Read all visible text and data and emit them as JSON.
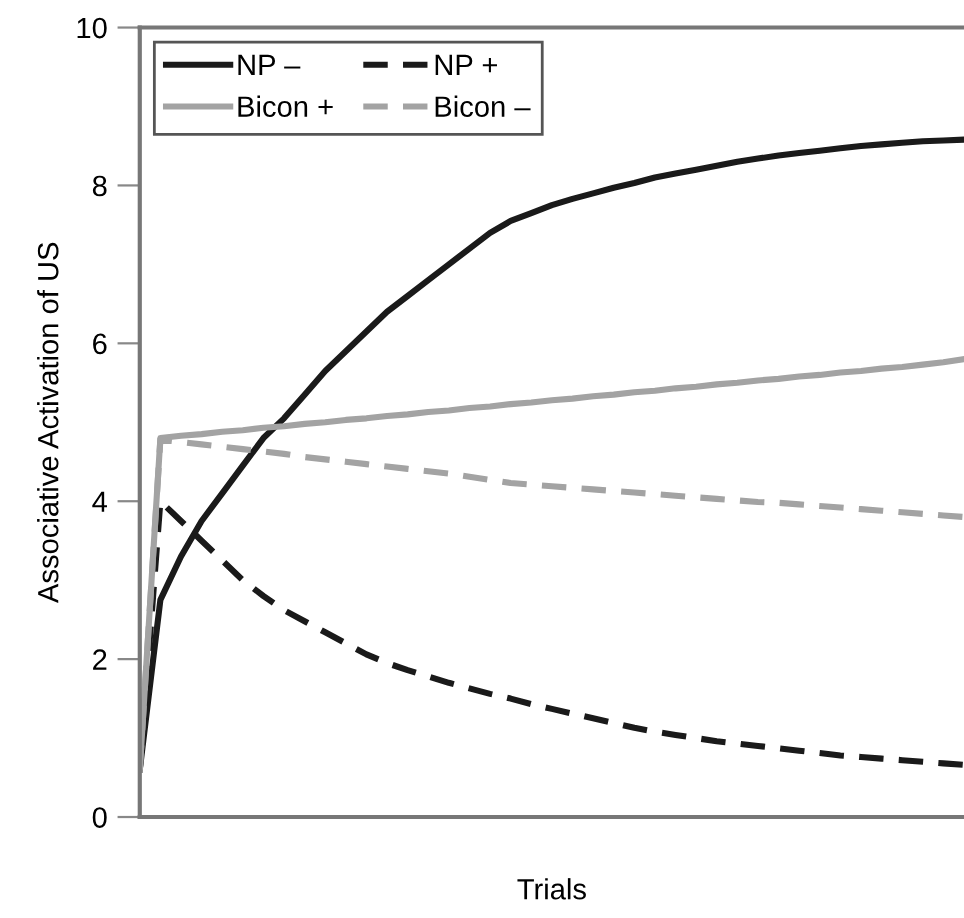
{
  "chart_data": {
    "type": "line",
    "xlabel": "Trials",
    "ylabel": "Associative Activation of US",
    "categories": [
      null,
      null,
      null,
      null,
      null,
      null,
      null,
      null,
      null,
      null,
      null,
      null,
      null,
      null,
      null,
      null,
      null,
      null,
      null,
      null,
      null,
      null,
      null,
      null,
      null,
      null,
      null,
      null,
      null,
      null,
      null,
      null,
      null,
      null,
      null,
      null,
      null,
      null,
      null,
      null,
      null
    ],
    "series": [
      {
        "name": "NP –",
        "color": "#1a1a1a",
        "line_style": "solid",
        "values": [
          0.6,
          2.75,
          3.3,
          3.75,
          4.1,
          4.45,
          4.8,
          5.05,
          5.35,
          5.65,
          5.9,
          6.15,
          6.4,
          6.6,
          6.8,
          7.0,
          7.2,
          7.4,
          7.55,
          7.65,
          7.75,
          7.83,
          7.9,
          7.97,
          8.03,
          8.1,
          8.15,
          8.2,
          8.25,
          8.3,
          8.34,
          8.38,
          8.41,
          8.44,
          8.47,
          8.5,
          8.52,
          8.54,
          8.56,
          8.57,
          8.58
        ]
      },
      {
        "name": "NP +",
        "color": "#1a1a1a",
        "line_style": "dashed",
        "values": [
          0.6,
          4.0,
          3.75,
          3.5,
          3.25,
          3.0,
          2.8,
          2.62,
          2.48,
          2.34,
          2.2,
          2.06,
          1.95,
          1.86,
          1.78,
          1.7,
          1.63,
          1.56,
          1.5,
          1.43,
          1.37,
          1.31,
          1.25,
          1.19,
          1.13,
          1.08,
          1.04,
          1.0,
          0.96,
          0.93,
          0.9,
          0.87,
          0.84,
          0.81,
          0.78,
          0.76,
          0.74,
          0.72,
          0.7,
          0.68,
          0.66
        ]
      },
      {
        "name": "Bicon +",
        "color": "#a3a3a3",
        "line_style": "solid",
        "values": [
          0.6,
          4.8,
          4.83,
          4.85,
          4.88,
          4.9,
          4.93,
          4.95,
          4.98,
          5.0,
          5.03,
          5.05,
          5.08,
          5.1,
          5.13,
          5.15,
          5.18,
          5.2,
          5.23,
          5.25,
          5.28,
          5.3,
          5.33,
          5.35,
          5.38,
          5.4,
          5.43,
          5.45,
          5.48,
          5.5,
          5.53,
          5.55,
          5.58,
          5.6,
          5.63,
          5.65,
          5.68,
          5.7,
          5.73,
          5.76,
          5.8
        ]
      },
      {
        "name": "Bicon –",
        "color": "#a3a3a3",
        "line_style": "dashed",
        "values": [
          0.6,
          4.78,
          4.75,
          4.72,
          4.69,
          4.66,
          4.63,
          4.6,
          4.56,
          4.53,
          4.5,
          4.47,
          4.44,
          4.41,
          4.38,
          4.35,
          4.31,
          4.27,
          4.23,
          4.21,
          4.19,
          4.17,
          4.15,
          4.13,
          4.11,
          4.09,
          4.07,
          4.05,
          4.03,
          4.01,
          3.99,
          3.98,
          3.96,
          3.94,
          3.92,
          3.9,
          3.88,
          3.86,
          3.84,
          3.82,
          3.8
        ]
      }
    ],
    "ylim": [
      0,
      10
    ],
    "yticks": [
      0,
      2,
      4,
      6,
      8,
      10
    ],
    "tick_labels": "y",
    "grid": false,
    "legend": "top left",
    "marker": "none"
  }
}
